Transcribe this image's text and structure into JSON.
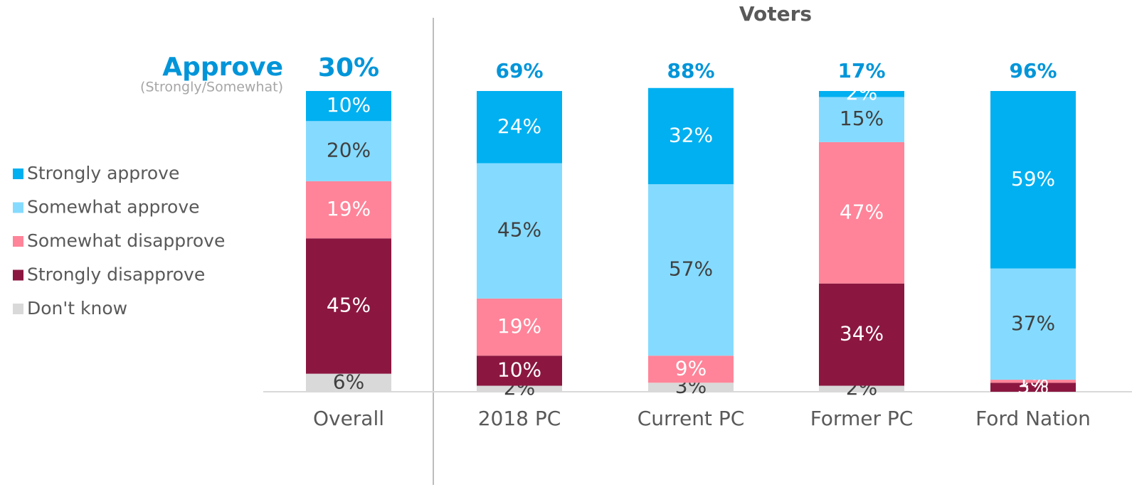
{
  "chart_data": {
    "type": "stacked_bar",
    "title": "Voters",
    "categories": [
      "Overall",
      "2018 PC",
      "Current PC",
      "Former PC",
      "Ford Nation"
    ],
    "ylim": [
      0,
      100
    ],
    "approve": {
      "label": "Approve",
      "sublabel": "(Strongly/Somewhat)",
      "values": [
        30,
        69,
        88,
        17,
        96
      ],
      "value_labels": [
        "30%",
        "69%",
        "88%",
        "17%",
        "96%"
      ],
      "color": "#0095d9"
    },
    "series": [
      {
        "name": "Don't know",
        "color": "#d9d9d9",
        "label_color": "#404040",
        "values": [
          6,
          2,
          3,
          2,
          null
        ],
        "value_labels": [
          "6%",
          "2%",
          "3%",
          "2%",
          null
        ]
      },
      {
        "name": "Strongly disapprove",
        "color": "#8b1740",
        "label_color": "#ffffff",
        "values": [
          45,
          10,
          null,
          34,
          3
        ],
        "value_labels": [
          "45%",
          "10%",
          null,
          "34%",
          "3%"
        ]
      },
      {
        "name": "Somewhat disapprove",
        "color": "#ff8499",
        "label_color": "#ffffff",
        "values": [
          19,
          19,
          9,
          47,
          1
        ],
        "value_labels": [
          "19%",
          "19%",
          "9%",
          "47%",
          "1%"
        ]
      },
      {
        "name": "Somewhat approve",
        "color": "#85dbff",
        "label_color": "#404040",
        "values": [
          20,
          45,
          57,
          15,
          37
        ],
        "value_labels": [
          "20%",
          "45%",
          "57%",
          "15%",
          "37%"
        ]
      },
      {
        "name": "Strongly approve",
        "color": "#00b0f0",
        "label_color": "#ffffff",
        "values": [
          10,
          24,
          32,
          2,
          59
        ],
        "value_labels": [
          "10%",
          "24%",
          "32%",
          "2%",
          "59%"
        ]
      }
    ]
  }
}
